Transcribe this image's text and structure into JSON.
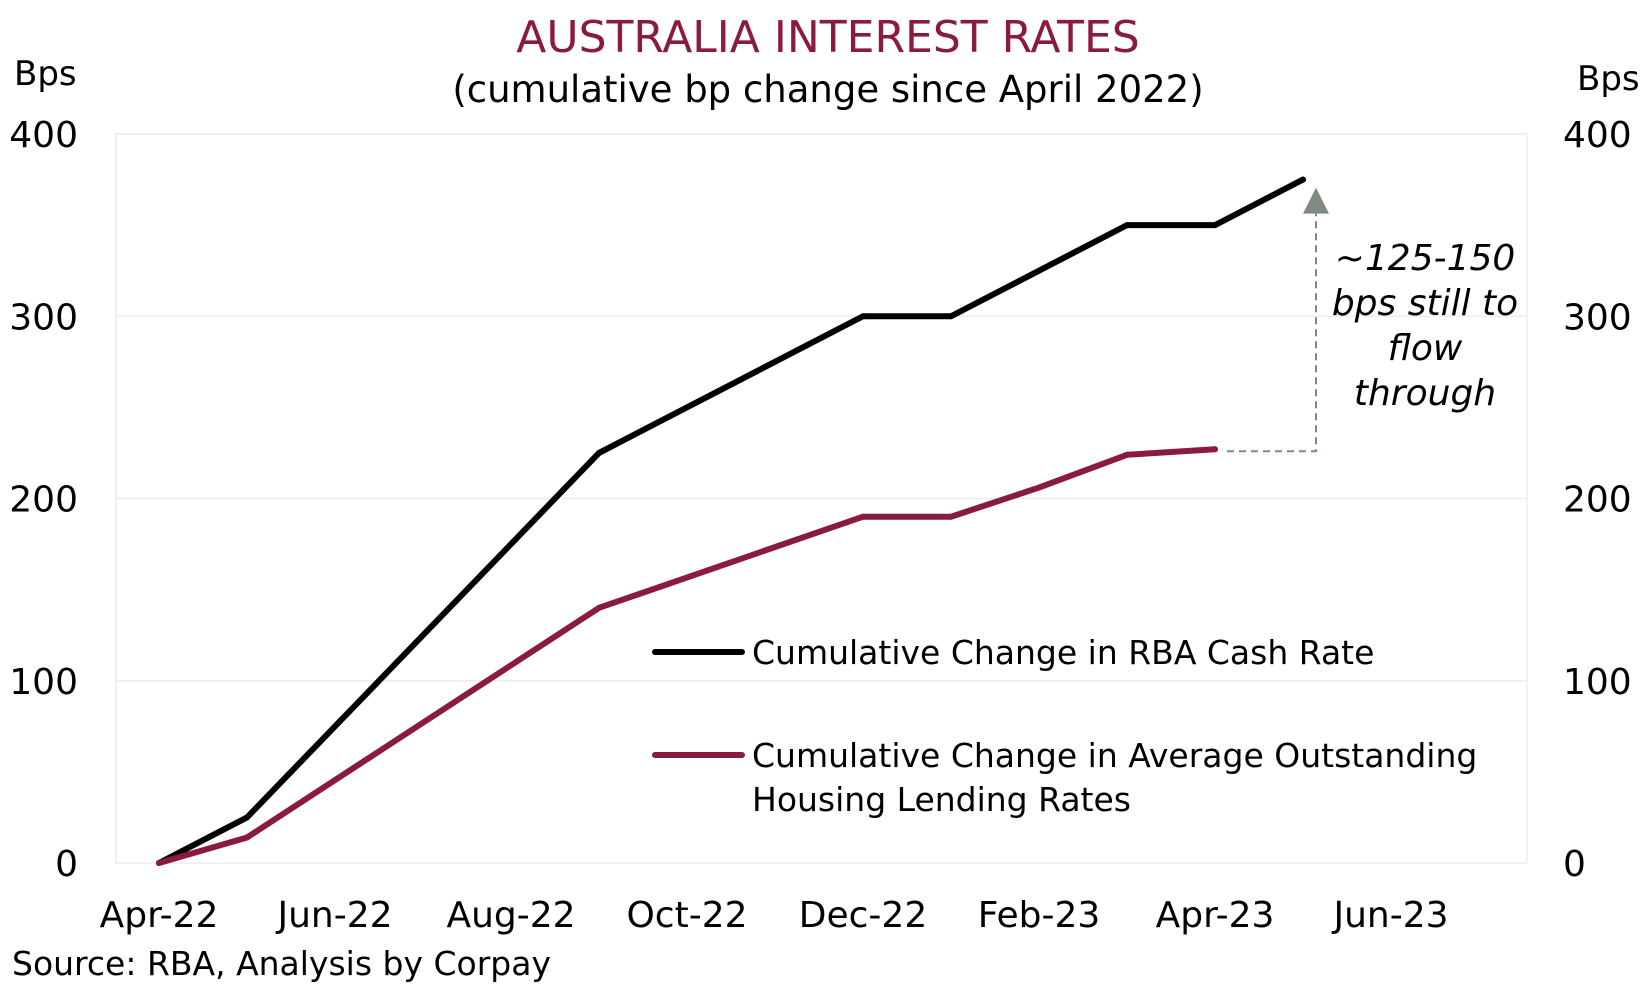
{
  "chart_data": {
    "type": "line",
    "title": "AUSTRALIA INTEREST RATES",
    "subtitle": "(cumulative bp change since April 2022)",
    "ylabel_left": "Bps",
    "ylabel_right": "Bps",
    "ylim": [
      0,
      400
    ],
    "yticks": [
      "0",
      "100",
      "200",
      "300",
      "400"
    ],
    "xlim": [
      "2022-04",
      "2023-07"
    ],
    "xticks": [
      {
        "label": "Apr-22",
        "date": "2022-04"
      },
      {
        "label": "Jun-22",
        "date": "2022-06"
      },
      {
        "label": "Aug-22",
        "date": "2022-08"
      },
      {
        "label": "Oct-22",
        "date": "2022-10"
      },
      {
        "label": "Dec-22",
        "date": "2022-12"
      },
      {
        "label": "Feb-23",
        "date": "2023-02"
      },
      {
        "label": "Apr-23",
        "date": "2023-04"
      },
      {
        "label": "Jun-23",
        "date": "2023-06"
      }
    ],
    "grid": true,
    "legend_position": "lower-right",
    "series": [
      {
        "name": "Cumulative Change in RBA Cash Rate",
        "color": "#000000",
        "points": [
          {
            "x": "2022-04",
            "y": 0
          },
          {
            "x": "2022-05",
            "y": 25
          },
          {
            "x": "2022-09",
            "y": 225
          },
          {
            "x": "2022-12",
            "y": 300
          },
          {
            "x": "2023-01",
            "y": 300
          },
          {
            "x": "2023-03",
            "y": 350
          },
          {
            "x": "2023-04",
            "y": 350
          },
          {
            "x": "2023-05",
            "y": 375
          }
        ]
      },
      {
        "name": "Cumulative Change in Average Outstanding Housing Lending Rates",
        "color": "#8b1a3f",
        "points": [
          {
            "x": "2022-04",
            "y": 0
          },
          {
            "x": "2022-05",
            "y": 14
          },
          {
            "x": "2022-09",
            "y": 140
          },
          {
            "x": "2022-12",
            "y": 190
          },
          {
            "x": "2023-01",
            "y": 190
          },
          {
            "x": "2023-02",
            "y": 206
          },
          {
            "x": "2023-03",
            "y": 224
          },
          {
            "x": "2023-04",
            "y": 227
          }
        ]
      }
    ],
    "annotation": {
      "lines": [
        "~125-150",
        "bps still to",
        "flow",
        "through"
      ],
      "arrow_from": {
        "x": "2023-04",
        "y": 227
      },
      "arrow_to": {
        "x": "2023-05",
        "y": 375
      },
      "color": "#7f8a82"
    },
    "source": "Source: RBA, Analysis by Corpay"
  },
  "colors": {
    "title": "#8b1a3f",
    "text": "#000000",
    "grid": "#ececec"
  }
}
